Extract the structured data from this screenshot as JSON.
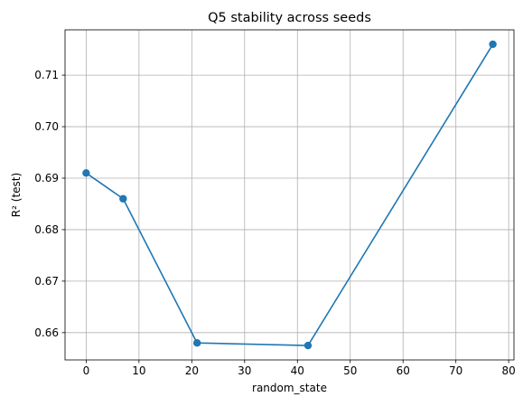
{
  "chart_data": {
    "type": "line",
    "title": "Q5 stability across seeds",
    "xlabel": "random_state",
    "ylabel": "R² (test)",
    "x": [
      0,
      7,
      21,
      42,
      77
    ],
    "series": [
      {
        "values": [
          0.691,
          0.686,
          0.658,
          0.6575,
          0.716
        ],
        "color": "#1f77b4",
        "marker": "circle"
      }
    ],
    "xlim": [
      -4,
      81
    ],
    "ylim": [
      0.6547,
      0.7188
    ],
    "xticks": [
      0,
      10,
      20,
      30,
      40,
      50,
      60,
      70,
      80
    ],
    "yticks": [
      0.66,
      0.67,
      0.68,
      0.69,
      0.7,
      0.71
    ],
    "ytick_format_decimals": 2,
    "grid": true,
    "colors": {
      "line": "#1f77b4",
      "grid": "#b0b0b0",
      "axes": "#000000"
    }
  }
}
